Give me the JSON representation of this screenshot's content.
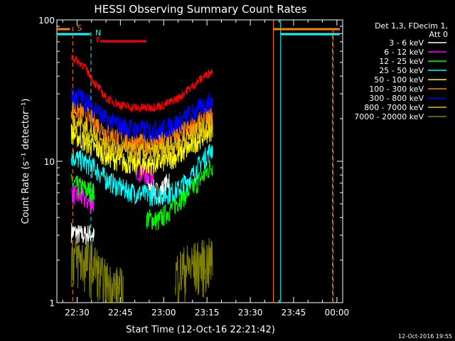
{
  "chart_data": {
    "type": "line",
    "title": "HESSI Observing Summary Count Rates",
    "xlabel": "Start Time (12-Oct-16 22:21:42)",
    "ylabel": "Count Rate (s⁻¹ detector⁻¹)",
    "yscale": "log",
    "ylim": [
      1,
      100
    ],
    "y_ticks": [
      {
        "value": 1,
        "label": "1"
      },
      {
        "value": 10,
        "label": "10"
      },
      {
        "value": 100,
        "label": "100"
      }
    ],
    "x_range_minutes": [
      -7,
      60
    ],
    "x_ticks": [
      {
        "minute": 0,
        "label": "22:30"
      },
      {
        "minute": 15,
        "label": "22:45"
      },
      {
        "minute": 30,
        "label": "23:00"
      },
      {
        "minute": 45,
        "label": "23:15"
      },
      {
        "minute": 60,
        "label": "23:30"
      },
      {
        "minute": 75,
        "label": "23:45"
      },
      {
        "minute": 90,
        "label": "00:00"
      }
    ],
    "legend_header": [
      "Det 1,3, FDecim 1,",
      "Att 0"
    ],
    "series": [
      {
        "name": "3 - 6 keV",
        "color": "#ffffff",
        "segments": [
          [
            -2,
            3.2
          ],
          [
            2,
            3.0
          ],
          [
            5,
            3.1
          ],
          [
            6,
            2.9
          ]
        ],
        "segments2": [
          [
            24,
            7.0
          ],
          [
            28,
            6.0
          ],
          [
            30,
            6.5
          ],
          [
            32,
            7.5
          ]
        ]
      },
      {
        "name": "6 - 12 keV",
        "color": "#ff00ff",
        "segments": [
          [
            -2,
            6.0
          ],
          [
            2,
            5.5
          ],
          [
            5,
            5.0
          ],
          [
            6,
            5.2
          ]
        ],
        "segments2": [
          [
            20,
            9.0
          ],
          [
            24,
            8.0
          ],
          [
            27,
            8.5
          ]
        ]
      },
      {
        "name": "12 - 25 keV",
        "color": "#00ff00",
        "segments": [
          [
            -2,
            7.0
          ],
          [
            2,
            6.5
          ],
          [
            6,
            6.0
          ]
        ],
        "segments2": [
          [
            24,
            4.0
          ],
          [
            28,
            3.8
          ],
          [
            32,
            4.5
          ],
          [
            36,
            5.5
          ],
          [
            40,
            6.5
          ],
          [
            44,
            8.0
          ],
          [
            47,
            9.5
          ]
        ]
      },
      {
        "name": "25 - 50 keV",
        "color": "#00ffff",
        "segments": [
          [
            -2,
            11.0
          ],
          [
            2,
            10.0
          ],
          [
            6,
            9.0
          ],
          [
            10,
            7.5
          ],
          [
            15,
            6.5
          ],
          [
            20,
            6.0
          ],
          [
            25,
            5.8
          ],
          [
            30,
            5.8
          ],
          [
            35,
            6.3
          ],
          [
            40,
            8.0
          ],
          [
            44,
            10.5
          ],
          [
            47,
            12.5
          ]
        ]
      },
      {
        "name": "50 - 100 keV",
        "color": "#ffff00",
        "segments": [
          [
            -2,
            16.0
          ],
          [
            2,
            14.0
          ],
          [
            6,
            12.5
          ],
          [
            10,
            11.0
          ],
          [
            15,
            10.0
          ],
          [
            20,
            9.5
          ],
          [
            25,
            9.5
          ],
          [
            30,
            10.0
          ],
          [
            35,
            11.0
          ],
          [
            40,
            13.0
          ],
          [
            44,
            15.5
          ],
          [
            47,
            17.0
          ]
        ]
      },
      {
        "name": "100 - 300 keV",
        "color": "#ff8000",
        "segments": [
          [
            -2,
            24.0
          ],
          [
            2,
            22.0
          ],
          [
            6,
            19.0
          ],
          [
            10,
            16.0
          ],
          [
            15,
            14.5
          ],
          [
            20,
            13.5
          ],
          [
            25,
            13.5
          ],
          [
            30,
            14.0
          ],
          [
            35,
            15.5
          ],
          [
            40,
            17.5
          ],
          [
            44,
            20.0
          ],
          [
            47,
            21.0
          ]
        ]
      },
      {
        "name": "300 - 800 keV",
        "color": "#0000ff",
        "segments": [
          [
            -2,
            30.0
          ],
          [
            2,
            28.0
          ],
          [
            6,
            24.0
          ],
          [
            10,
            20.0
          ],
          [
            15,
            18.0
          ],
          [
            20,
            17.0
          ],
          [
            25,
            16.5
          ],
          [
            30,
            17.0
          ],
          [
            35,
            19.0
          ],
          [
            40,
            22.0
          ],
          [
            44,
            25.0
          ],
          [
            47,
            27.0
          ]
        ]
      },
      {
        "name": "800 - 7000 keV",
        "color": "#e0c000",
        "segments": [
          [
            -2,
            20.0
          ],
          [
            2,
            18.0
          ],
          [
            6,
            15.0
          ],
          [
            10,
            13.0
          ],
          [
            15,
            12.0
          ],
          [
            20,
            11.5
          ],
          [
            25,
            11.5
          ],
          [
            30,
            12.0
          ],
          [
            35,
            13.5
          ],
          [
            40,
            15.5
          ],
          [
            44,
            17.5
          ],
          [
            47,
            19.0
          ]
        ]
      },
      {
        "name": "7000 - 20000 keV",
        "color": "#808000",
        "segments": [
          [
            -2,
            2.2
          ],
          [
            2,
            2.0
          ],
          [
            6,
            1.9
          ],
          [
            8,
            1.5
          ],
          [
            12,
            1.3
          ],
          [
            16,
            1.2
          ]
        ],
        "segments2": [
          [
            34,
            1.6
          ],
          [
            38,
            1.8
          ],
          [
            42,
            1.9
          ],
          [
            47,
            2.0
          ]
        ]
      }
    ],
    "red_flare_line": {
      "color": "#ff0000",
      "points": [
        [
          -2,
          55
        ],
        [
          2,
          48
        ],
        [
          6,
          36
        ],
        [
          10,
          28
        ],
        [
          15,
          25
        ],
        [
          20,
          24
        ],
        [
          25,
          24
        ],
        [
          30,
          25
        ],
        [
          35,
          28
        ],
        [
          40,
          34
        ],
        [
          44,
          40
        ],
        [
          47,
          44
        ]
      ]
    },
    "markers": [
      {
        "label": "S",
        "minute": -1.5,
        "color": "#ff8000"
      },
      {
        "label": "N",
        "minute": 4.8,
        "color": "#00ffff"
      },
      {
        "label": "F",
        "minute": 7.5,
        "color": "#ff0000"
      }
    ],
    "timestamp": "12-Oct-2016 19:55"
  }
}
